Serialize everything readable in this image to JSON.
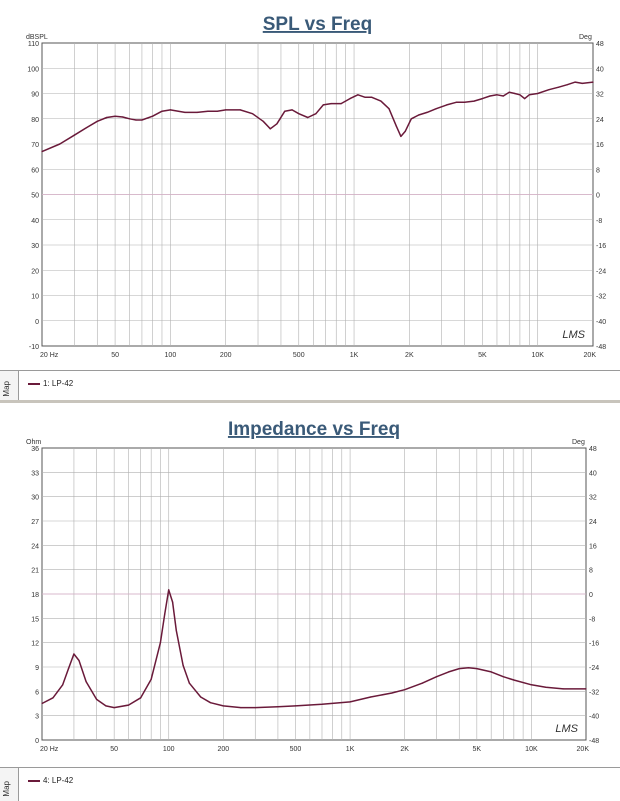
{
  "chart_data": [
    {
      "type": "line",
      "title": "SPL vs Freq",
      "ylabel_left": "dBSPL",
      "ylabel_right": "Deg",
      "x_scale": "log",
      "xlim": [
        20,
        20000
      ],
      "ylim": [
        -10,
        110
      ],
      "ylim_right": [
        -48,
        48
      ],
      "grid": true,
      "x_tick_labels": [
        {
          "v": 20,
          "t": "20  Hz"
        },
        {
          "v": 50,
          "t": "50"
        },
        {
          "v": 100,
          "t": "100"
        },
        {
          "v": 200,
          "t": "200"
        },
        {
          "v": 500,
          "t": "500"
        },
        {
          "v": 1000,
          "t": "1K"
        },
        {
          "v": 2000,
          "t": "2K"
        },
        {
          "v": 5000,
          "t": "5K"
        },
        {
          "v": 10000,
          "t": "10K"
        },
        {
          "v": 20000,
          "t": "20K"
        }
      ],
      "y_ticks": [
        110,
        100,
        90,
        80,
        70,
        60,
        50,
        40,
        30,
        20,
        10,
        0,
        -10
      ],
      "y_right_ticks": [
        48,
        40,
        32,
        24,
        16,
        8,
        0,
        -8,
        -16,
        -24,
        -32,
        -40,
        -48
      ],
      "series": [
        {
          "name": "1: LP-42",
          "color": "#6a1a3a",
          "points": [
            [
              20,
              67
            ],
            [
              25,
              70
            ],
            [
              30,
              73.5
            ],
            [
              35,
              76.5
            ],
            [
              40,
              79
            ],
            [
              45,
              80.5
            ],
            [
              50,
              81
            ],
            [
              55,
              80.7
            ],
            [
              60,
              80
            ],
            [
              65,
              79.5
            ],
            [
              70,
              79.5
            ],
            [
              80,
              81
            ],
            [
              90,
              83
            ],
            [
              100,
              83.5
            ],
            [
              120,
              82.5
            ],
            [
              140,
              82.5
            ],
            [
              160,
              83
            ],
            [
              180,
              83
            ],
            [
              200,
              83.5
            ],
            [
              240,
              83.5
            ],
            [
              280,
              82
            ],
            [
              320,
              79
            ],
            [
              350,
              76
            ],
            [
              380,
              78
            ],
            [
              420,
              83
            ],
            [
              460,
              83.5
            ],
            [
              500,
              82
            ],
            [
              560,
              80.5
            ],
            [
              620,
              82
            ],
            [
              680,
              85.5
            ],
            [
              750,
              86
            ],
            [
              850,
              86
            ],
            [
              950,
              88
            ],
            [
              1050,
              89.5
            ],
            [
              1150,
              88.5
            ],
            [
              1250,
              88.5
            ],
            [
              1400,
              87
            ],
            [
              1550,
              84
            ],
            [
              1700,
              77
            ],
            [
              1800,
              73
            ],
            [
              1900,
              75
            ],
            [
              2050,
              80
            ],
            [
              2250,
              81.5
            ],
            [
              2500,
              82.5
            ],
            [
              2800,
              84
            ],
            [
              3200,
              85.5
            ],
            [
              3600,
              86.5
            ],
            [
              4000,
              86.5
            ],
            [
              4500,
              87
            ],
            [
              5000,
              88
            ],
            [
              5500,
              89
            ],
            [
              6000,
              89.5
            ],
            [
              6500,
              89
            ],
            [
              7000,
              90.5
            ],
            [
              7500,
              90
            ],
            [
              8000,
              89.5
            ],
            [
              8500,
              88
            ],
            [
              9000,
              89.5
            ],
            [
              10000,
              90
            ],
            [
              11500,
              91.5
            ],
            [
              13000,
              92.5
            ],
            [
              14500,
              93.5
            ],
            [
              16000,
              94.5
            ],
            [
              17500,
              94
            ],
            [
              20000,
              94.5
            ]
          ]
        }
      ],
      "watermark": "LMS"
    },
    {
      "type": "line",
      "title": "Impedance vs Freq",
      "ylabel_left": "Ohm",
      "ylabel_right": "Deg",
      "x_scale": "log",
      "xlim": [
        20,
        20000
      ],
      "ylim": [
        0,
        36
      ],
      "ylim_right": [
        -48,
        48
      ],
      "grid": true,
      "x_tick_labels": [
        {
          "v": 20,
          "t": "20  Hz"
        },
        {
          "v": 50,
          "t": "50"
        },
        {
          "v": 100,
          "t": "100"
        },
        {
          "v": 200,
          "t": "200"
        },
        {
          "v": 500,
          "t": "500"
        },
        {
          "v": 1000,
          "t": "1K"
        },
        {
          "v": 2000,
          "t": "2K"
        },
        {
          "v": 5000,
          "t": "5K"
        },
        {
          "v": 10000,
          "t": "10K"
        },
        {
          "v": 20000,
          "t": "20K"
        }
      ],
      "y_ticks": [
        36,
        33,
        30,
        27,
        24,
        21,
        18,
        15,
        12,
        9,
        6,
        3,
        0
      ],
      "y_right_ticks": [
        48,
        40,
        32,
        24,
        16,
        8,
        0,
        -8,
        -16,
        -24,
        -32,
        -40,
        -48
      ],
      "series": [
        {
          "name": "4: LP-42",
          "color": "#6a1a3a",
          "points": [
            [
              20,
              4.5
            ],
            [
              23,
              5.2
            ],
            [
              26,
              6.8
            ],
            [
              28,
              8.8
            ],
            [
              30,
              10.6
            ],
            [
              32,
              9.8
            ],
            [
              35,
              7.2
            ],
            [
              40,
              5
            ],
            [
              45,
              4.2
            ],
            [
              50,
              4
            ],
            [
              60,
              4.3
            ],
            [
              70,
              5.2
            ],
            [
              80,
              7.5
            ],
            [
              90,
              12
            ],
            [
              95,
              15.5
            ],
            [
              100,
              18.5
            ],
            [
              105,
              17
            ],
            [
              110,
              13.5
            ],
            [
              120,
              9.2
            ],
            [
              130,
              7
            ],
            [
              150,
              5.3
            ],
            [
              170,
              4.6
            ],
            [
              200,
              4.2
            ],
            [
              250,
              4
            ],
            [
              300,
              4
            ],
            [
              400,
              4.1
            ],
            [
              500,
              4.2
            ],
            [
              700,
              4.4
            ],
            [
              1000,
              4.7
            ],
            [
              1300,
              5.3
            ],
            [
              1700,
              5.8
            ],
            [
              2000,
              6.2
            ],
            [
              2500,
              7
            ],
            [
              3000,
              7.8
            ],
            [
              3500,
              8.4
            ],
            [
              4000,
              8.8
            ],
            [
              4500,
              8.9
            ],
            [
              5000,
              8.8
            ],
            [
              6000,
              8.4
            ],
            [
              7000,
              7.8
            ],
            [
              8000,
              7.4
            ],
            [
              10000,
              6.8
            ],
            [
              12000,
              6.5
            ],
            [
              15000,
              6.3
            ],
            [
              20000,
              6.3
            ]
          ]
        }
      ],
      "watermark": "LMS"
    }
  ],
  "ui": {
    "map_label_1": "Map",
    "map_label_2": "Map",
    "legend_1": "1: LP-42",
    "legend_2": "4: LP-42"
  }
}
